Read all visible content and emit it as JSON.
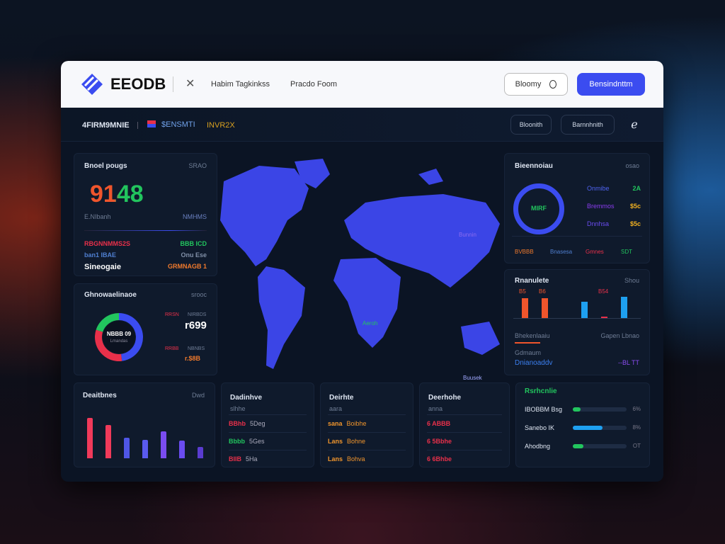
{
  "header": {
    "brand": "EEODB",
    "nav": [
      "Habim Tagkinkss",
      "Pracdo Foom"
    ],
    "search_label": "Bloomy",
    "primary_button": "Bensindnttm"
  },
  "subheader": {
    "title": "4FIRM9MNIE",
    "tag": "$ENSMTI",
    "badge": "INVR2X",
    "buttons": [
      "Bloonith",
      "Barnnhnith"
    ]
  },
  "kpi": {
    "title": "Bnoel pougs",
    "corner": "SRAO",
    "value": "9148",
    "left_label": "E.NIbanh",
    "right_label": "NMHMS",
    "rows": [
      {
        "l": "RBGNNMMS2S",
        "r": "BBB ICD",
        "lc": "#e8304a",
        "rc": "#22c55e"
      },
      {
        "l": "ban1 IBAE",
        "r": "Onu Ese",
        "lc": "#4f7fd0",
        "rc": "#8190a8"
      },
      {
        "l": "Sineogaie",
        "r": "GRMNAGB 1",
        "lc": "#ffffff",
        "rc": "#f07a2c"
      }
    ]
  },
  "donut_left": {
    "title": "Ghnowaelinaoe",
    "corner": "srooc",
    "center": "NBBB 09",
    "center_sub": "Lmandas",
    "labels": [
      {
        "a": "RRSN",
        "b": "NIRBDS"
      },
      {
        "a": "RRBB",
        "b": "NBNBS"
      }
    ],
    "value": "r699",
    "value2": "r.$8B",
    "colors": [
      "#3b4cf0",
      "#e8304a",
      "#22c55e"
    ],
    "segments": [
      48,
      32,
      20
    ]
  },
  "map": {
    "labels": [
      "Bunnin",
      "Aeroh",
      "Buusek"
    ],
    "fill": "#3b45e6"
  },
  "donut_right": {
    "title": "Bieennoiau",
    "corner": "osao",
    "center": "MIRF",
    "legend": [
      {
        "l": "Onmibe",
        "v": "2A",
        "c": "#4f63f0",
        "vc": "#22c55e"
      },
      {
        "l": "Bremmos",
        "v": "$5c",
        "c": "#8b3cf0",
        "vc": "#f0b020"
      },
      {
        "l": "Dnnhsa",
        "v": "$5c",
        "c": "#6a4cf0",
        "vc": "#f0b020"
      }
    ],
    "footer": [
      {
        "t": "BVBBB",
        "c": "#f07a2c"
      },
      {
        "t": "Bnasesa",
        "c": "#4f7fd0"
      },
      {
        "t": "Gmnes",
        "c": "#e8304a"
      },
      {
        "t": "SDT",
        "c": "#22c55e"
      }
    ],
    "ring": "#3b4cf0"
  },
  "bars_right": {
    "title": "Rnanulete",
    "corner": "Shou",
    "bar_labels": [
      "B5",
      "B6",
      "",
      "",
      "B54",
      ""
    ],
    "values": [
      70,
      70,
      0,
      58,
      5,
      75
    ],
    "colors": [
      "#f0552c",
      "#f0552c",
      "#333",
      "#1ea0f0",
      "#e8304a",
      "#1ea0f0"
    ],
    "left1": "Bhekenlaaiu",
    "right1": "Gapen Lbnao",
    "left2": "Gdmaum",
    "value": "Dnianoaddv",
    "value_right": "--BL TT"
  },
  "bars_bottom": {
    "title": "Deaitbnes",
    "corner": "Dwd",
    "values": [
      88,
      72,
      45,
      40,
      58,
      39,
      25
    ],
    "colors": [
      "#f03a5a",
      "#f03a5a",
      "#4f56e6",
      "#5a5aee",
      "#7a4cf0",
      "#6a4cf0",
      "#5a3cd0"
    ]
  },
  "lists": [
    {
      "title": "Dadinhve",
      "sub": "slhhe",
      "rows": [
        {
          "a": "BBhb",
          "b": "5Deg",
          "c": "#e8304a"
        },
        {
          "a": "Bbbb",
          "b": "5Ges",
          "c": "#22c55e"
        },
        {
          "a": "BIIB",
          "b": "5Ha",
          "c": "#e8304a"
        }
      ]
    },
    {
      "title": "Deirhte",
      "sub": "aara",
      "rows": [
        {
          "a": "sana",
          "b": "Boibhe",
          "c": "#f0952c"
        },
        {
          "a": "Lans",
          "b": "Bohne",
          "c": "#f0952c"
        },
        {
          "a": "Lans",
          "b": "Bohva",
          "c": "#f0952c"
        }
      ]
    },
    {
      "title": "Deerhohe",
      "sub": "anna",
      "rows": [
        {
          "a": "6 ABBB",
          "b": "",
          "c": "#e8304a"
        },
        {
          "a": "6 5Bbhe",
          "b": "",
          "c": "#e8304a"
        },
        {
          "a": "6 6Bhbe",
          "b": "",
          "c": "#e8304a"
        }
      ]
    }
  ],
  "progress": {
    "title": "Rsrhcnlie",
    "items": [
      {
        "l": "IBOBBM Bsg",
        "v": 0.08,
        "c": "#22c55e",
        "p": "6%"
      },
      {
        "l": "Sanebo IK",
        "v": 0.55,
        "c": "#1ea0f0",
        "p": "8%"
      },
      {
        "l": "Ahodbng",
        "v": 0.2,
        "c": "#22c55e",
        "p": "OT"
      }
    ]
  }
}
